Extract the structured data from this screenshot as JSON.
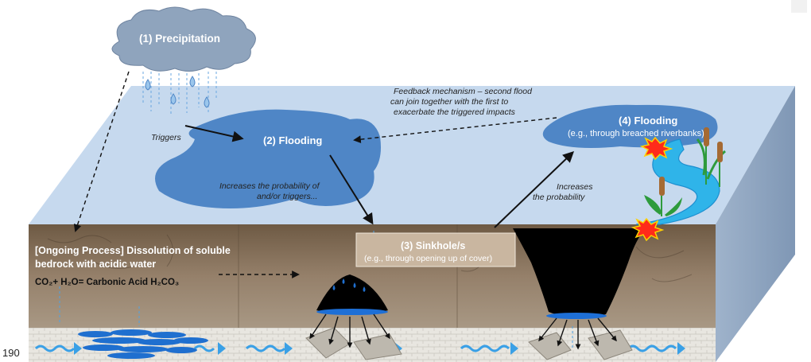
{
  "labels": {
    "precipitation": "(1) Precipitation",
    "flooding_2": "(2) Flooding",
    "flooding_4": "(4) Flooding",
    "flooding_4_sub": "(e.g., through breached riverbanks)",
    "sinkhole": "(3) Sinkhole/s",
    "sinkhole_sub": "(e.g., through opening up of cover)",
    "ongoing_line1": "[Ongoing Process] Dissolution of soluble",
    "ongoing_line2": "bedrock with acidic water",
    "formula": "CO₂+ H₂O= Carbonic Acid H₂CO₃"
  },
  "annotations": {
    "triggers": "Triggers",
    "increases_1": "Increases the probability of",
    "increases_2": "and/or triggers...",
    "increases_prob_1": "Increases",
    "increases_prob_2": "the probability",
    "feedback_1": "Feedback mechanism – second flood",
    "feedback_2": "can join together with the first to",
    "feedback_3": "exacerbate the triggered impacts"
  },
  "page_number": "190",
  "colors": {
    "surface": "#c6d9ee",
    "side": "#8fa7c4",
    "water": "#4f86c6",
    "soil": "#8c7558",
    "sinkhole": "#000000",
    "river": "#2fb4e9",
    "arrow": "#1a1a1a"
  }
}
